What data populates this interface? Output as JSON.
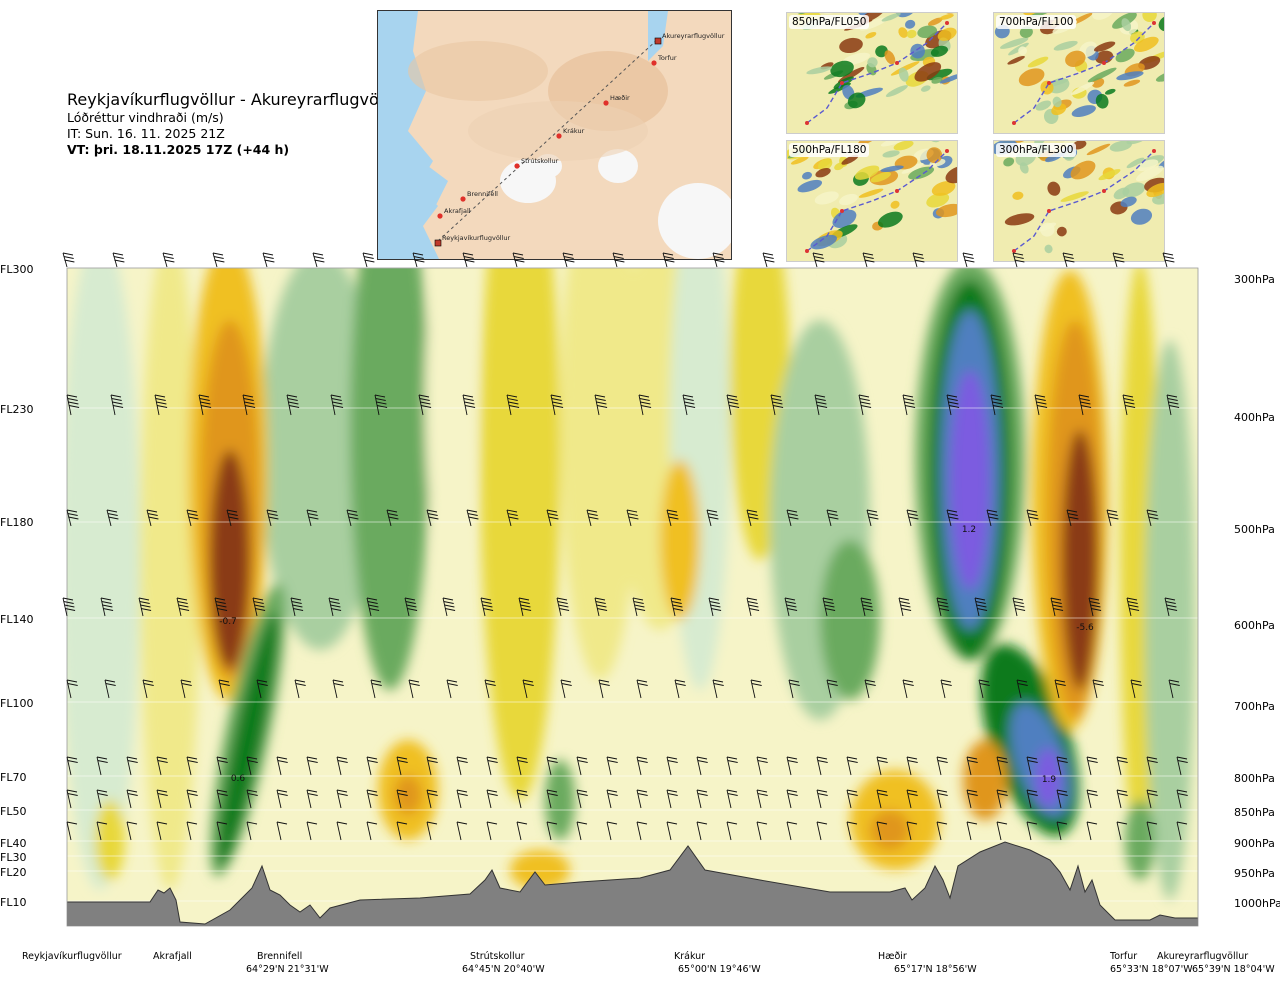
{
  "header": {
    "route": "Reykjavíkurflugvöllur - Akureyrarflugvöllur",
    "parameter": "Lóðréttur vindhraði (m/s)",
    "issue_time": "IT: Sun. 16. 11. 2025 21Z",
    "valid_time": "VT: þri. 18.11.2025 17Z (+44 h)"
  },
  "route_map": {
    "stations": [
      "Akureyrarflugvöllur",
      "Torfur",
      "Hæðir",
      "Krákur",
      "Strútskollur",
      "Brennifell",
      "Akrafjall",
      "Reykjavíkurflugvöllur"
    ]
  },
  "thumbnails": [
    "850hPa/FL050",
    "700hPa/FL100",
    "500hPa/FL180",
    "300hPa/FL300"
  ],
  "chart_data": {
    "type": "heatmap",
    "y_axis_left": [
      "FL300",
      "FL230",
      "FL180",
      "FL140",
      "FL100",
      "FL70",
      "FL50",
      "FL40",
      "FL30",
      "FL20",
      "FL10"
    ],
    "y_axis_right": [
      "300hPa",
      "400hPa",
      "500hPa",
      "600hPa",
      "700hPa",
      "800hPa",
      "850hPa",
      "900hPa",
      "950hPa",
      "1000hPa"
    ],
    "annotations": [
      "-0.7",
      "0.6",
      "1.2",
      "-5.6",
      "1.9"
    ],
    "locations": [
      {
        "name": "Reykjavíkurflugvöllur",
        "coord": ""
      },
      {
        "name": "Akrafjall",
        "coord": ""
      },
      {
        "name": "Brennifell",
        "coord": "64°29'N 21°31'W"
      },
      {
        "name": "Strútskollur",
        "coord": "64°45'N 20°40'W"
      },
      {
        "name": "Krákur",
        "coord": "65°00'N 19°46'W"
      },
      {
        "name": "Hæðir",
        "coord": "65°17'N 18°56'W"
      },
      {
        "name": "Torfur",
        "coord": "65°33'N 18°07'W"
      },
      {
        "name": "Akureyrarflugvöllur",
        "coord": "65°39'N 18°04'W"
      }
    ],
    "colors": {
      "strong_up": "#7b5ce0",
      "up_4": "#4f7fc0",
      "up_3": "#0a7a1e",
      "up_2": "#6aaa5e",
      "up_1": "#a9cfa0",
      "up_0": "#d7ebd0",
      "neutral": "#f6f4c8",
      "down_1": "#f0e98a",
      "down_2": "#e8d83a",
      "down_3": "#f0c020",
      "down_4": "#e0961e",
      "down_5": "#8a3a12",
      "terrain": "#808080"
    }
  }
}
